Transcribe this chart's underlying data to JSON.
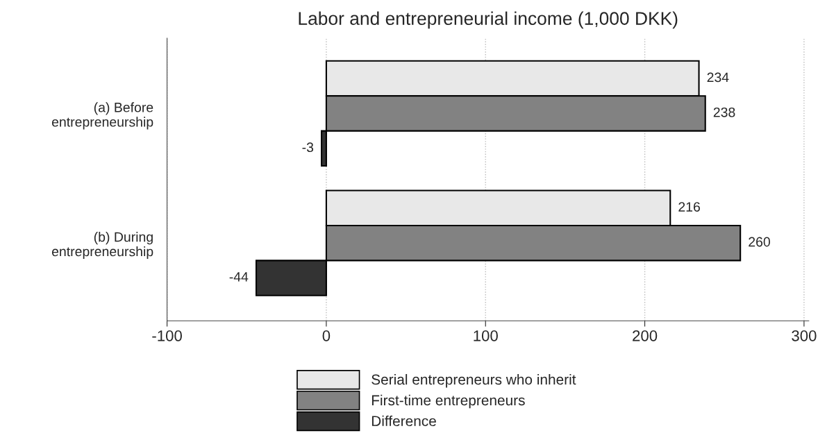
{
  "chart_data": {
    "type": "bar",
    "orientation": "horizontal",
    "title": "Labor and entrepreneurial income (1,000 DKK)",
    "categories": [
      "(a) Before\nentrepreneurship",
      "(b) During\nentrepreneurship"
    ],
    "series": [
      {
        "name": "Serial entrepreneurs who inherit",
        "color": "#e8e8e8",
        "values": [
          234,
          216
        ]
      },
      {
        "name": "First-time entrepreneurs",
        "color": "#828282",
        "values": [
          238,
          260
        ]
      },
      {
        "name": "Difference",
        "color": "#333333",
        "values": [
          -3,
          -44
        ]
      }
    ],
    "xlim": [
      -100,
      303
    ],
    "xticks": [
      -100,
      0,
      100,
      200,
      300
    ],
    "grid": "x",
    "legend": "bottom",
    "data_labels": true
  }
}
